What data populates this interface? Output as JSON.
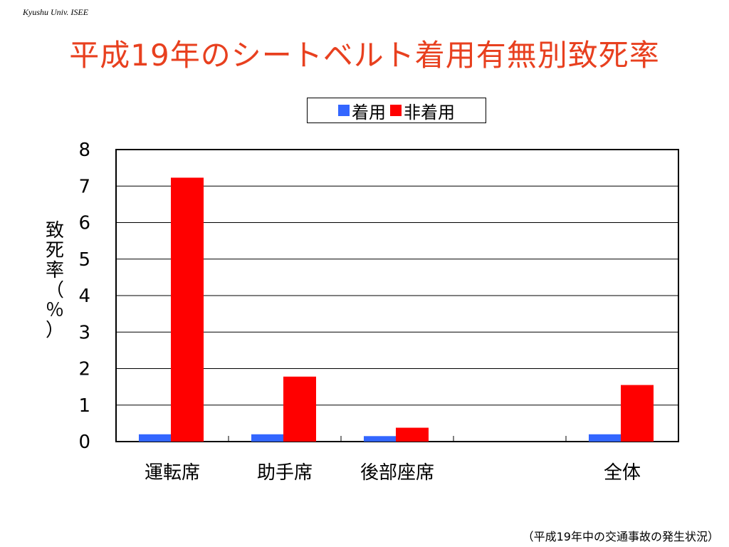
{
  "header": {
    "org": "Kyushu Univ. ISEE",
    "title": "平成19年のシートベルト着用有無別致死率"
  },
  "colors": {
    "title": "#e8401f",
    "seatbelt_on": "#3366ff",
    "seatbelt_off": "#ff0000"
  },
  "chart_data": {
    "type": "bar",
    "title": "",
    "xlabel": "",
    "ylabel": "致死率（％）",
    "ylabel_chars": [
      "致",
      "死",
      "率",
      "（",
      "％",
      "）"
    ],
    "ylim": [
      0,
      8
    ],
    "yticks": [
      0,
      1,
      2,
      3,
      4,
      5,
      6,
      7,
      8
    ],
    "grid": true,
    "legend_position": "top-center",
    "categories": [
      "運転席",
      "助手席",
      "後部座席",
      "",
      "全体"
    ],
    "series": [
      {
        "name": "着用",
        "color": "#3366ff",
        "values": [
          0.2,
          0.2,
          0.15,
          null,
          0.2
        ]
      },
      {
        "name": "非着用",
        "color": "#ff0000",
        "values": [
          7.23,
          1.78,
          0.38,
          null,
          1.55
        ]
      }
    ]
  },
  "footer": {
    "source": "（平成19年中の交通事故の発生状況）"
  }
}
